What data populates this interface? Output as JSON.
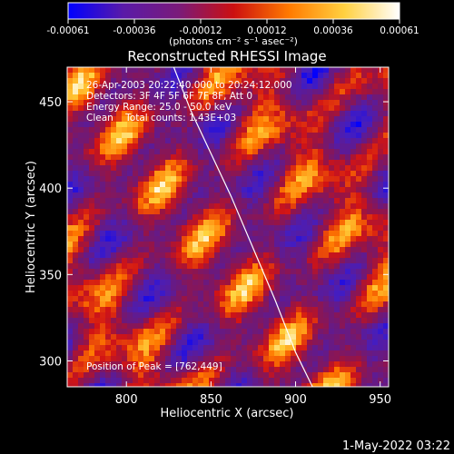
{
  "colorbar": {
    "ticks": [
      "-0.00061",
      "-0.00036",
      "-0.00012",
      "0.00012",
      "0.00036",
      "0.00061"
    ],
    "unit_label": "(photons cm⁻² s⁻¹ asec⁻²)",
    "colors": [
      "#0000ff",
      "#5a1aa8",
      "#7a1a7a",
      "#cc1010",
      "#ff7a00",
      "#ffd040",
      "#ffffff"
    ]
  },
  "footer": {
    "timestamp": "1-May-2022 03:22"
  },
  "chart_data": {
    "type": "heatmap",
    "title": "Reconstructed RHESSI Image",
    "xlabel": "Heliocentric X (arcsec)",
    "ylabel": "Heliocentric Y (arcsec)",
    "xlim": [
      765,
      955
    ],
    "ylim": [
      285,
      470
    ],
    "xticks": [
      "800",
      "850",
      "900",
      "950"
    ],
    "yticks": [
      "450",
      "400",
      "350",
      "300"
    ],
    "value_range": [
      -0.00061,
      0.00061
    ],
    "annotations": [
      "26-Apr-2003 20:22:40.000 to 20:24:12.000",
      "Detectors: 3F 4F 5F 6F 7F 8F, Att 0",
      "Energy Range: 25.0 - 50.0 keV",
      "Clean    Total counts: 1.43E+03"
    ],
    "peak_text": "Position of Peak = [762,449]",
    "peak_position": [
      762,
      449
    ],
    "limb_curve": {
      "x": [
        828,
        838,
        850,
        862,
        875,
        888,
        900,
        910
      ],
      "y": [
        470,
        445,
        420,
        395,
        365,
        335,
        305,
        285
      ]
    }
  }
}
